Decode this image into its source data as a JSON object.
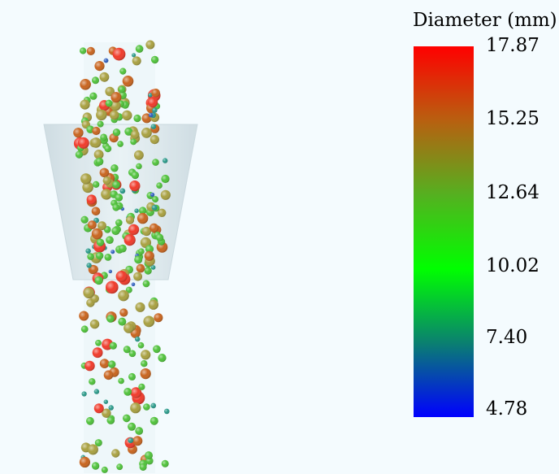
{
  "legend": {
    "title": "Diameter (mm)",
    "ticks": [
      "17.87",
      "15.25",
      "12.64",
      "10.02",
      "7.40",
      "4.78"
    ],
    "colors": [
      "#ff0000",
      "#b86010",
      "#55b020",
      "#00ff00",
      "#0a8070",
      "#0000ff"
    ]
  },
  "scene": {
    "funnel_color": "#dbe8ec",
    "particle_palette": {
      "red": "#f03a2a",
      "orange": "#c8641e",
      "olive": "#a8a040",
      "green": "#4fc23a",
      "teal": "#2a9a8a",
      "blue": "#3060c0"
    }
  }
}
